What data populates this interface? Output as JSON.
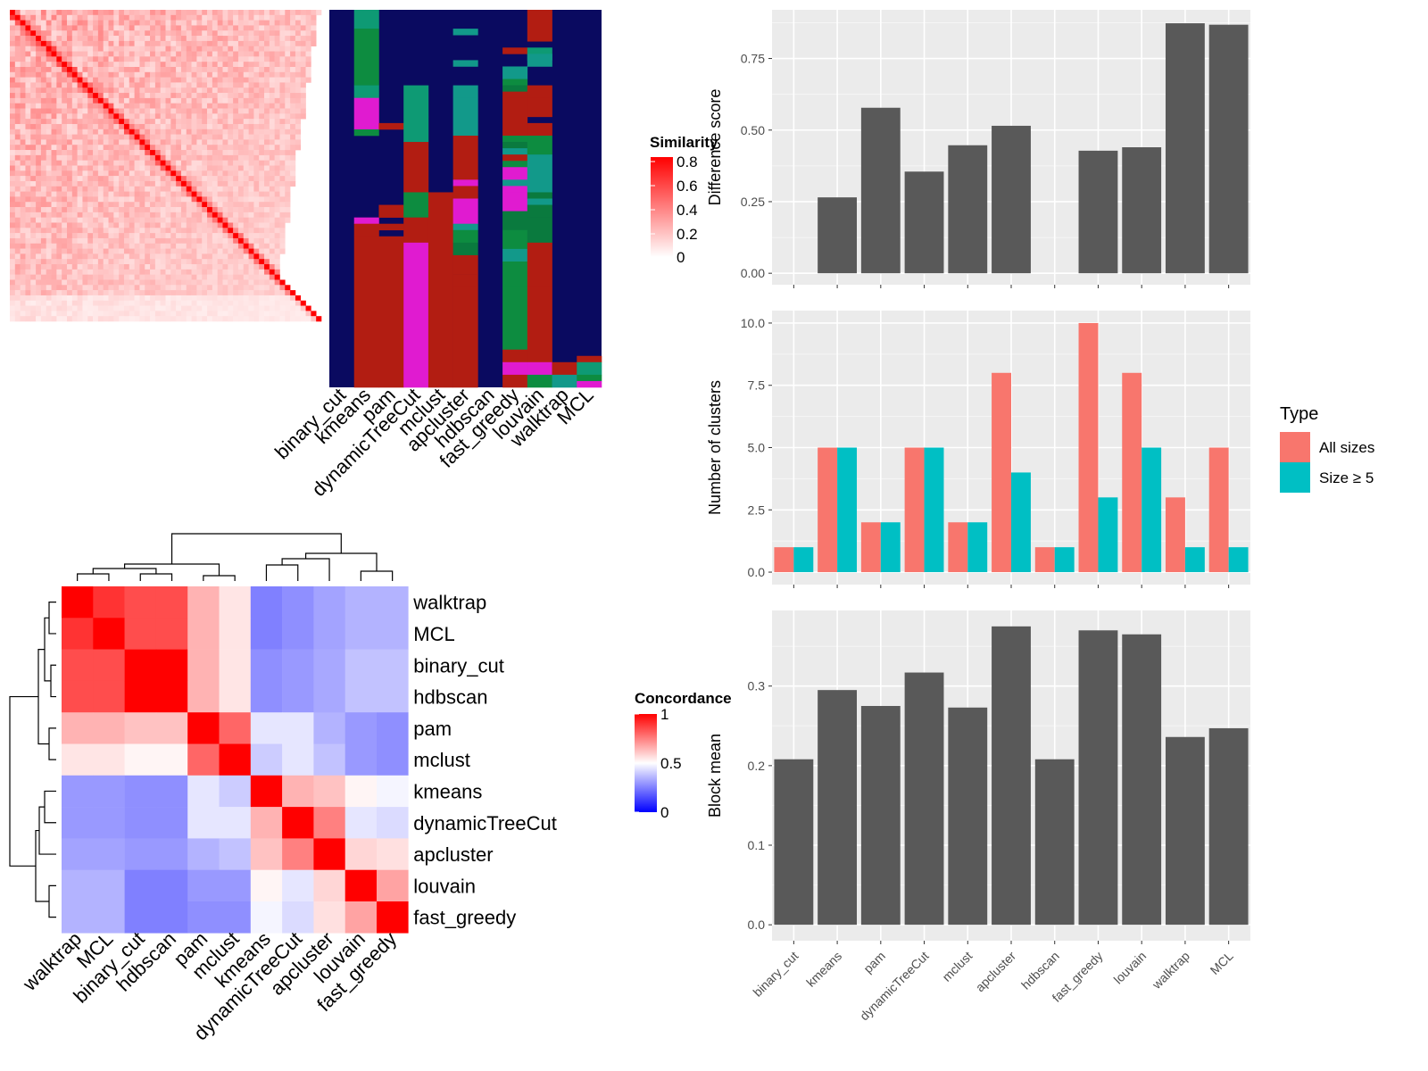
{
  "chart_data": [
    {
      "type": "heatmap",
      "name": "similarity-heatmap",
      "legend_title": "Similarity",
      "legend_ticks": [
        "0",
        "0.2",
        "0.4",
        "0.6",
        "0.8"
      ],
      "range": [
        0,
        0.85
      ],
      "size": 60,
      "low_color": "#ffffff",
      "high_color": "#ff0000"
    },
    {
      "type": "heatmap",
      "name": "cluster-assignment-heatmap",
      "columns": [
        "binary_cut",
        "kmeans",
        "pam",
        "dynamicTreeCut",
        "mclust",
        "apcluster",
        "hdbscan",
        "fast_greedy",
        "louvain",
        "walktrap",
        "MCL"
      ],
      "rows": 60,
      "palette": [
        "#0a0a60",
        "#0e9a74",
        "#0d8c40",
        "#e01bd0",
        "#b21d12",
        "#12998a",
        "#0a7a3e"
      ]
    },
    {
      "type": "heatmap",
      "name": "concordance-heatmap",
      "legend_title": "Concordance",
      "legend_ticks": [
        "0",
        "0.5",
        "1"
      ],
      "methods": [
        "walktrap",
        "MCL",
        "binary_cut",
        "hdbscan",
        "pam",
        "mclust",
        "kmeans",
        "dynamicTreeCut",
        "apcluster",
        "louvain",
        "fast_greedy"
      ],
      "values": [
        [
          1.0,
          0.9,
          0.85,
          0.85,
          0.65,
          0.55,
          0.25,
          0.28,
          0.32,
          0.35,
          0.35
        ],
        [
          0.9,
          1.0,
          0.85,
          0.85,
          0.65,
          0.55,
          0.25,
          0.28,
          0.32,
          0.35,
          0.35
        ],
        [
          0.85,
          0.85,
          1.0,
          1.0,
          0.65,
          0.55,
          0.28,
          0.3,
          0.33,
          0.38,
          0.38
        ],
        [
          0.85,
          0.85,
          1.0,
          1.0,
          0.65,
          0.55,
          0.28,
          0.3,
          0.33,
          0.38,
          0.38
        ],
        [
          0.65,
          0.65,
          0.62,
          0.62,
          1.0,
          0.8,
          0.45,
          0.45,
          0.35,
          0.3,
          0.28
        ],
        [
          0.55,
          0.55,
          0.52,
          0.52,
          0.8,
          1.0,
          0.4,
          0.45,
          0.38,
          0.3,
          0.28
        ],
        [
          0.3,
          0.3,
          0.28,
          0.28,
          0.45,
          0.4,
          1.0,
          0.65,
          0.62,
          0.52,
          0.48
        ],
        [
          0.3,
          0.3,
          0.28,
          0.28,
          0.45,
          0.45,
          0.65,
          1.0,
          0.75,
          0.45,
          0.43
        ],
        [
          0.32,
          0.32,
          0.3,
          0.3,
          0.35,
          0.38,
          0.62,
          0.75,
          1.0,
          0.58,
          0.56
        ],
        [
          0.35,
          0.35,
          0.25,
          0.25,
          0.3,
          0.3,
          0.52,
          0.45,
          0.58,
          1.0,
          0.68
        ],
        [
          0.35,
          0.35,
          0.25,
          0.25,
          0.28,
          0.28,
          0.48,
          0.43,
          0.56,
          0.68,
          1.0
        ]
      ]
    },
    {
      "type": "bar",
      "name": "difference-score",
      "ylabel": "Difference score",
      "categories": [
        "binary_cut",
        "kmeans",
        "pam",
        "dynamicTreeCut",
        "mclust",
        "apcluster",
        "hdbscan",
        "fast_greedy",
        "louvain",
        "walktrap",
        "MCL"
      ],
      "values": [
        0,
        0.265,
        0.578,
        0.355,
        0.447,
        0.515,
        0,
        0.428,
        0.44,
        0.873,
        0.868
      ],
      "ylim": [
        -0.04,
        0.92
      ],
      "ticks": [
        "0.00",
        "0.25",
        "0.50",
        "0.75"
      ],
      "tick_values": [
        0,
        0.25,
        0.5,
        0.75
      ]
    },
    {
      "type": "bar",
      "name": "number-of-clusters",
      "ylabel": "Number of clusters",
      "categories": [
        "binary_cut",
        "kmeans",
        "pam",
        "dynamicTreeCut",
        "mclust",
        "apcluster",
        "hdbscan",
        "fast_greedy",
        "louvain",
        "walktrap",
        "MCL"
      ],
      "series": [
        {
          "name": "All sizes",
          "color": "#f8766d",
          "values": [
            1,
            5,
            2,
            5,
            2,
            8,
            1,
            10,
            8,
            3,
            5
          ]
        },
        {
          "name": "Size ≥ 5",
          "color": "#00bfc4",
          "values": [
            1,
            5,
            2,
            5,
            2,
            4,
            1,
            3,
            5,
            1,
            1
          ]
        }
      ],
      "legend_title": "Type",
      "legend_position": "right",
      "ylim": [
        -0.5,
        10.5
      ],
      "ticks": [
        "0.0",
        "2.5",
        "5.0",
        "7.5",
        "10.0"
      ],
      "tick_values": [
        0,
        2.5,
        5,
        7.5,
        10
      ]
    },
    {
      "type": "bar",
      "name": "block-mean",
      "ylabel": "Block mean",
      "categories": [
        "binary_cut",
        "kmeans",
        "pam",
        "dynamicTreeCut",
        "mclust",
        "apcluster",
        "hdbscan",
        "fast_greedy",
        "louvain",
        "walktrap",
        "MCL"
      ],
      "values": [
        0.208,
        0.295,
        0.275,
        0.317,
        0.273,
        0.375,
        0.208,
        0.37,
        0.365,
        0.236,
        0.247
      ],
      "ylim": [
        -0.02,
        0.395
      ],
      "ticks": [
        "0.0",
        "0.1",
        "0.2",
        "0.3"
      ],
      "tick_values": [
        0,
        0.1,
        0.2,
        0.3
      ]
    }
  ]
}
